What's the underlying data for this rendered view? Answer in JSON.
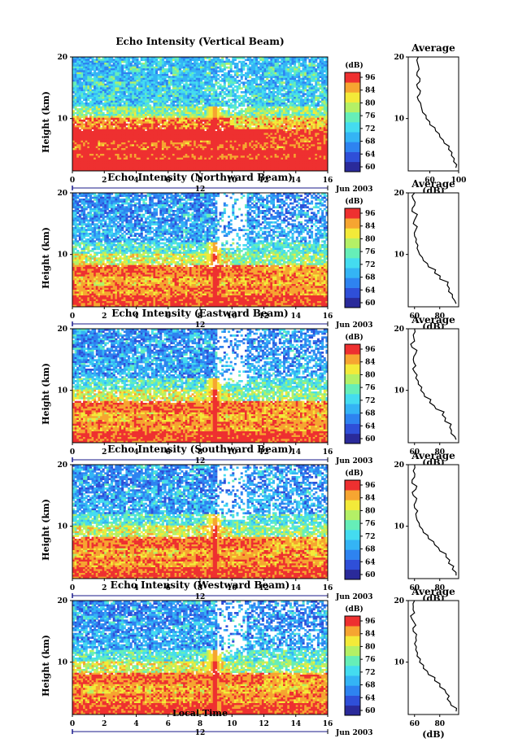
{
  "colors": {
    "scale": [
      "#2a2a9a",
      "#2f4fd8",
      "#2e83f0",
      "#34b4f5",
      "#44dcf0",
      "#66eeb8",
      "#b4f066",
      "#f3ea39",
      "#f6a531",
      "#ee3030"
    ],
    "curve": "#000000"
  },
  "colorbar": {
    "unit": "(dB)",
    "ticks": [
      "96",
      "84",
      "80",
      "76",
      "72",
      "68",
      "64",
      "60"
    ]
  },
  "shared": {
    "xlabel": "Local Time",
    "date_label": "Jun 2003",
    "marker_label": "12",
    "avg_xlabel": "(dB)",
    "ylabel": "Height (km)"
  },
  "chart_data": [
    {
      "type": "heatmap",
      "title": "Echo Intensity (Vertical Beam)",
      "xticks": [
        "0",
        "2",
        "4",
        "6",
        "8",
        "10",
        "12",
        "14",
        "16"
      ],
      "yticks": [
        "20",
        "10"
      ],
      "xlim": [
        0,
        16
      ],
      "ylim": [
        1.5,
        20
      ],
      "profile": {
        "title": "Average",
        "xticks": [
          "60",
          "100"
        ],
        "xlim": [
          30,
          100
        ],
        "points": [
          [
            96,
            2
          ],
          [
            93,
            3
          ],
          [
            90,
            4
          ],
          [
            86,
            5
          ],
          [
            80,
            6
          ],
          [
            74,
            7
          ],
          [
            68,
            8
          ],
          [
            60,
            9
          ],
          [
            55,
            10
          ],
          [
            50,
            11
          ],
          [
            48,
            12
          ],
          [
            44,
            13
          ],
          [
            46,
            14
          ],
          [
            43,
            15
          ],
          [
            46,
            16
          ],
          [
            42,
            17
          ],
          [
            45,
            18
          ],
          [
            43,
            19
          ],
          [
            44,
            20
          ]
        ]
      }
    },
    {
      "type": "heatmap",
      "title": "Echo Intensity (Northward Beam)",
      "xticks": [
        "0",
        "2",
        "4",
        "6",
        "8",
        "10",
        "12",
        "14",
        "16"
      ],
      "yticks": [
        "20",
        "10"
      ],
      "xlim": [
        0,
        16
      ],
      "ylim": [
        1.5,
        20
      ],
      "profile": {
        "title": "Average",
        "xticks": [
          "60",
          "80"
        ],
        "xlim": [
          55,
          95
        ],
        "points": [
          [
            93,
            2
          ],
          [
            90,
            3
          ],
          [
            87,
            4
          ],
          [
            86,
            5
          ],
          [
            80,
            6
          ],
          [
            76,
            7
          ],
          [
            71,
            8
          ],
          [
            67,
            9
          ],
          [
            64,
            10
          ],
          [
            62,
            11
          ],
          [
            61,
            12
          ],
          [
            60,
            13
          ],
          [
            61,
            14
          ],
          [
            59,
            15
          ],
          [
            61,
            16
          ],
          [
            58,
            17
          ],
          [
            60,
            18
          ],
          [
            59,
            19
          ],
          [
            60,
            20
          ]
        ]
      }
    },
    {
      "type": "heatmap",
      "title": "Echo Intensity (Eastward Beam)",
      "xticks": [
        "0",
        "2",
        "4",
        "6",
        "8",
        "10",
        "12",
        "14",
        "16"
      ],
      "yticks": [
        "20",
        "10"
      ],
      "xlim": [
        0,
        16
      ],
      "ylim": [
        1.5,
        20
      ],
      "profile": {
        "title": "Average",
        "xticks": [
          "60",
          "80"
        ],
        "xlim": [
          55,
          95
        ],
        "points": [
          [
            93,
            2
          ],
          [
            89,
            3
          ],
          [
            88,
            4
          ],
          [
            84,
            5
          ],
          [
            82,
            6
          ],
          [
            77,
            7
          ],
          [
            72,
            8
          ],
          [
            68,
            9
          ],
          [
            65,
            10
          ],
          [
            63,
            11
          ],
          [
            61,
            12
          ],
          [
            60,
            13
          ],
          [
            61,
            14
          ],
          [
            59,
            15
          ],
          [
            61,
            16
          ],
          [
            58,
            17
          ],
          [
            60,
            18
          ],
          [
            59,
            19
          ],
          [
            60,
            20
          ]
        ]
      }
    },
    {
      "type": "heatmap",
      "title": "Echo Intensity (Southward Beam)",
      "xticks": [
        "0",
        "2",
        "4",
        "6",
        "8",
        "10",
        "12",
        "14",
        "16"
      ],
      "yticks": [
        "20",
        "10"
      ],
      "xlim": [
        0,
        16
      ],
      "ylim": [
        1.5,
        20
      ],
      "profile": {
        "title": "Average",
        "xticks": [
          "60",
          "80"
        ],
        "xlim": [
          55,
          95
        ],
        "points": [
          [
            93,
            2
          ],
          [
            90,
            3
          ],
          [
            87,
            4
          ],
          [
            85,
            5
          ],
          [
            80,
            6
          ],
          [
            76,
            7
          ],
          [
            71,
            8
          ],
          [
            67,
            9
          ],
          [
            64,
            10
          ],
          [
            62,
            11
          ],
          [
            61,
            12
          ],
          [
            60,
            13
          ],
          [
            61,
            14
          ],
          [
            59,
            15
          ],
          [
            61,
            16
          ],
          [
            58,
            17
          ],
          [
            60,
            18
          ],
          [
            59,
            19
          ],
          [
            60,
            20
          ]
        ]
      }
    },
    {
      "type": "heatmap",
      "title": "Echo Intensity (Westward Beam)",
      "xticks": [
        "0",
        "2",
        "4",
        "6",
        "8",
        "10",
        "12",
        "14",
        "16"
      ],
      "yticks": [
        "20",
        "10"
      ],
      "xlim": [
        0,
        16
      ],
      "ylim": [
        1.5,
        20
      ],
      "profile": {
        "title": "Average",
        "xticks": [
          "60",
          "80"
        ],
        "xlim": [
          55,
          95
        ],
        "points": [
          [
            93,
            2
          ],
          [
            89,
            3
          ],
          [
            86,
            4
          ],
          [
            85,
            5
          ],
          [
            80,
            6
          ],
          [
            76,
            7
          ],
          [
            71,
            8
          ],
          [
            67,
            9
          ],
          [
            64,
            10
          ],
          [
            62,
            11
          ],
          [
            61,
            12
          ],
          [
            60,
            13
          ],
          [
            61,
            14
          ],
          [
            59,
            15
          ],
          [
            61,
            16
          ],
          [
            58,
            17
          ],
          [
            60,
            18
          ],
          [
            59,
            19
          ],
          [
            60,
            20
          ]
        ]
      }
    }
  ]
}
